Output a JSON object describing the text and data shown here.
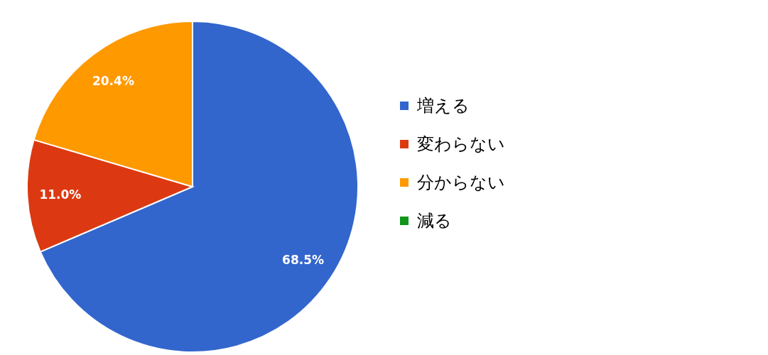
{
  "chart_data": {
    "type": "pie",
    "categories": [
      "増える",
      "変わらない",
      "分からない",
      "減る"
    ],
    "values": [
      68.5,
      11.0,
      20.4,
      0
    ],
    "colors": [
      "#3366cc",
      "#dc3912",
      "#ff9900",
      "#109618"
    ],
    "value_labels": [
      "68.5%",
      "11.0%",
      "20.4%",
      null
    ],
    "legend": "right"
  }
}
